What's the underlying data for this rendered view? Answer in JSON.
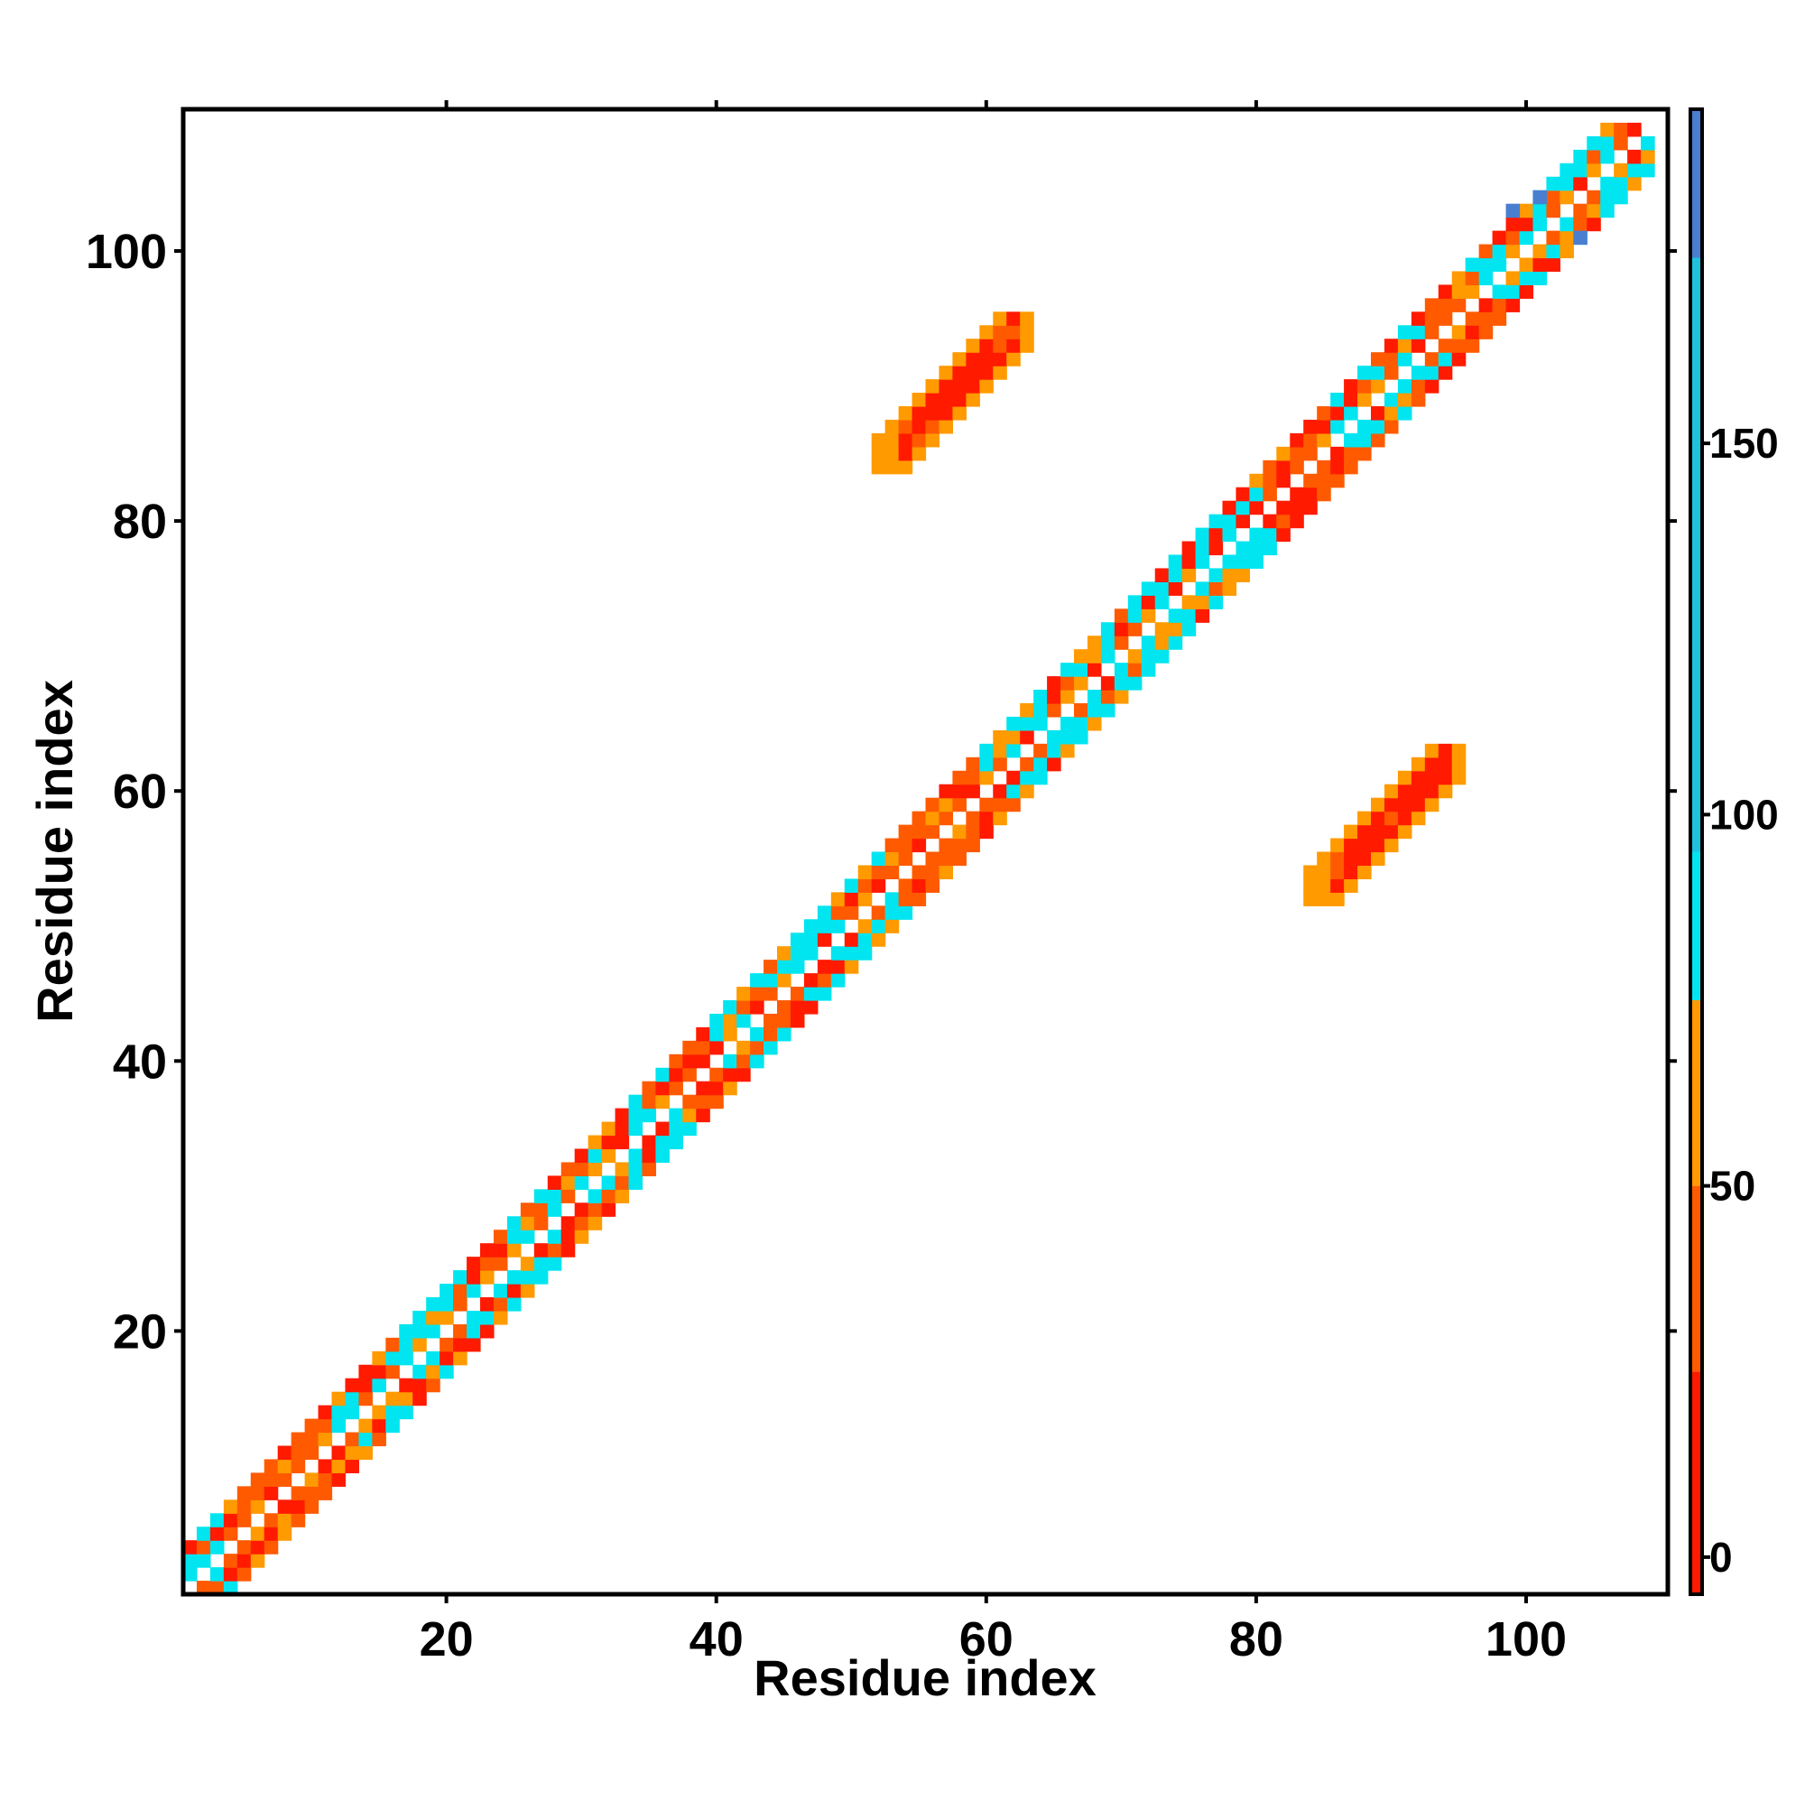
{
  "chart_data": {
    "type": "heatmap",
    "title": "",
    "xlabel": "Residue index",
    "ylabel": "Residue index",
    "xlim": [
      1,
      110
    ],
    "ylim": [
      1,
      110
    ],
    "x_ticks": [
      20,
      40,
      60,
      80,
      100
    ],
    "y_ticks": [
      20,
      40,
      60,
      80,
      100
    ],
    "colorbar": {
      "range": [
        -5,
        195
      ],
      "ticks": [
        0,
        50,
        100,
        150
      ],
      "bands": [
        {
          "from": -5,
          "to": 25,
          "color": "#ff1a00"
        },
        {
          "from": 25,
          "to": 50,
          "color": "#ff5a00"
        },
        {
          "from": 50,
          "to": 75,
          "color": "#ff9a00"
        },
        {
          "from": 75,
          "to": 95,
          "color": "#00e5f0"
        },
        {
          "from": 95,
          "to": 175,
          "color": "#1fc2dc"
        },
        {
          "from": 175,
          "to": 195,
          "color": "#4a7fd0"
        }
      ]
    },
    "diagonal_band": {
      "from_residue": 1,
      "to_residue": 109,
      "max_offset": 3,
      "note_colors": [
        "#ff1a00",
        "#ff5a00",
        "#ff9a00",
        "#00e5f0"
      ]
    },
    "off_diagonal_contacts": [
      {
        "x_range": [
          52,
          63
        ],
        "y_range": [
          84,
          95
        ],
        "color_core": "#ff1a00",
        "color_edge": "#ff9a00"
      },
      {
        "x_range": [
          84,
          95
        ],
        "y_range": [
          52,
          63
        ],
        "color_core": "#ff1a00",
        "color_edge": "#ff9a00"
      }
    ]
  }
}
